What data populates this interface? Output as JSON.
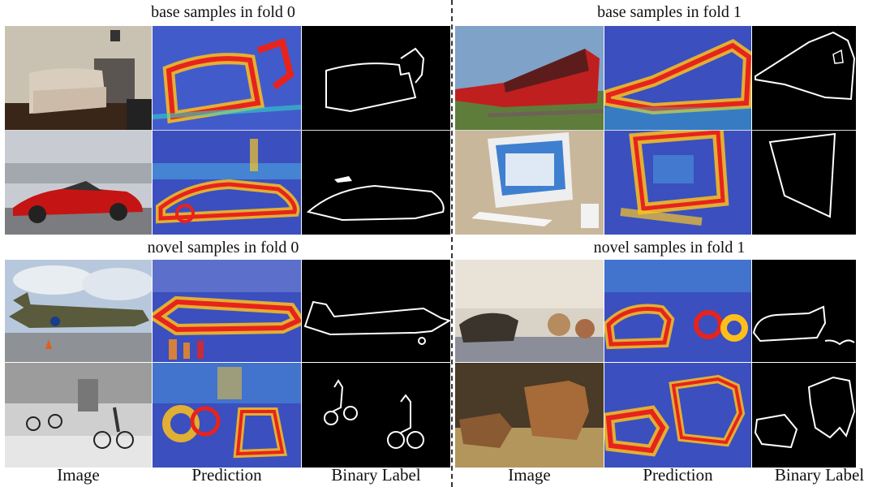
{
  "panels": [
    {
      "title": "base samples in fold 0"
    },
    {
      "title": "base samples in fold 1"
    },
    {
      "title": "novel samples in fold 0"
    },
    {
      "title": "novel samples in fold 1"
    }
  ],
  "columns": [
    {
      "label": "Image"
    },
    {
      "label": "Prediction"
    },
    {
      "label": "Binary Label"
    },
    {
      "label": "Image"
    },
    {
      "label": "Prediction"
    },
    {
      "label": "Binary Label"
    }
  ],
  "samples": [
    {
      "panel": 0,
      "row": 0,
      "object": "sofa"
    },
    {
      "panel": 0,
      "row": 1,
      "object": "car"
    },
    {
      "panel": 1,
      "row": 0,
      "object": "train"
    },
    {
      "panel": 1,
      "row": 1,
      "object": "tv-monitor"
    },
    {
      "panel": 2,
      "row": 0,
      "object": "aeroplane"
    },
    {
      "panel": 2,
      "row": 1,
      "object": "bicycle"
    },
    {
      "panel": 3,
      "row": 0,
      "object": "cat"
    },
    {
      "panel": 3,
      "row": 1,
      "object": "cow"
    }
  ]
}
